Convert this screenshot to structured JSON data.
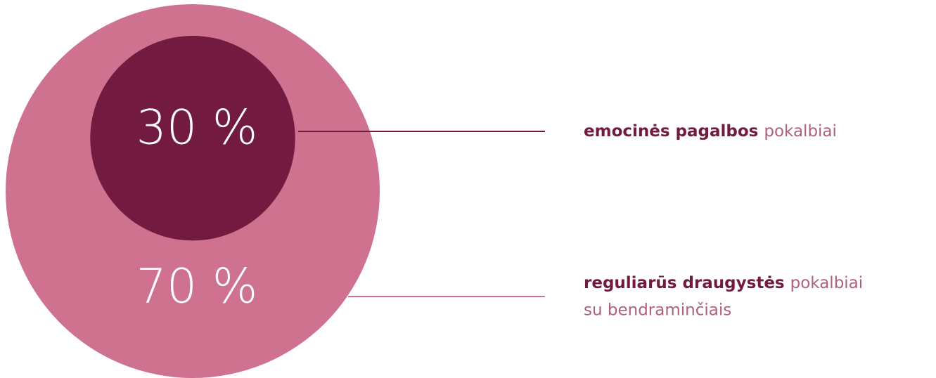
{
  "chart_data": {
    "type": "nested-circle",
    "values": [
      30,
      70
    ],
    "value_labels": [
      "30 %",
      "70 %"
    ],
    "colors": [
      "#721a3f",
      "#cf7290"
    ],
    "labels": [
      {
        "strong": "emocinės pagalbos",
        "text": [
          "pokalbiai"
        ]
      },
      {
        "strong": "reguliarūs draugystės",
        "text": [
          "pokalbiai",
          "su bendraminčiais"
        ]
      }
    ]
  }
}
